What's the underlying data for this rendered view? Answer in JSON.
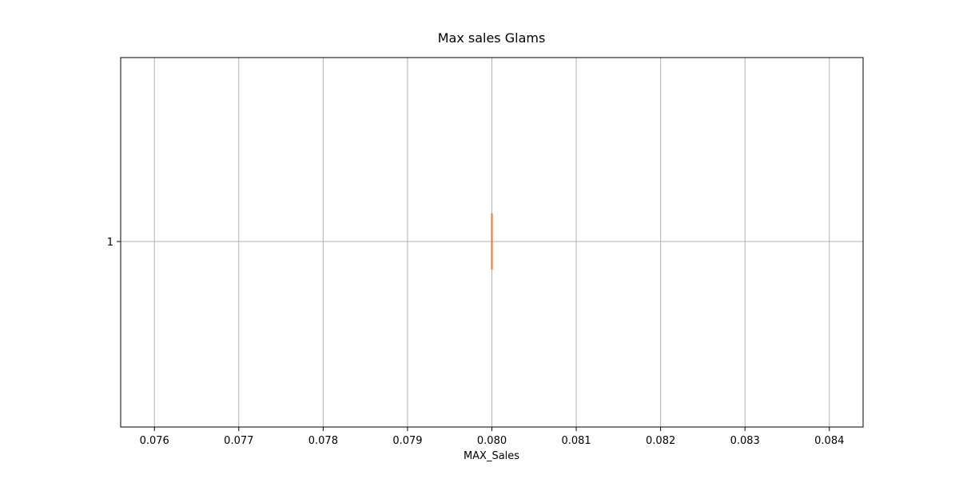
{
  "chart_data": {
    "type": "box",
    "orientation": "horizontal",
    "title": "Max sales Glams",
    "xlabel": "MAX_Sales",
    "ylabel": "",
    "categories": [
      "1"
    ],
    "box": {
      "min": 0.08,
      "q1": 0.08,
      "median": 0.08,
      "q3": 0.08,
      "max": 0.08
    },
    "xlim": [
      0.0756,
      0.0844
    ],
    "x_ticks": [
      "0.076",
      "0.077",
      "0.078",
      "0.079",
      "0.080",
      "0.081",
      "0.082",
      "0.083",
      "0.084"
    ],
    "grid": true,
    "colors": {
      "grid": "#b0b0b0",
      "box": "#000000",
      "median": "#e07b2f",
      "whisker": "#000000"
    }
  }
}
